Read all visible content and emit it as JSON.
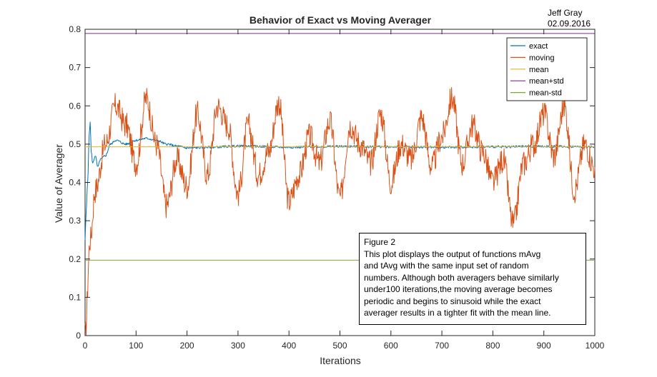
{
  "chart_data": {
    "type": "line",
    "title": "Behavior of Exact vs Moving Averager",
    "author": "Jeff Gray",
    "date": "02.09.2016",
    "xlabel": "Iterations",
    "ylabel": "Value of Averager",
    "xlim": [
      0,
      1000
    ],
    "ylim": [
      0,
      0.8
    ],
    "xticks": [
      "0",
      "100",
      "200",
      "300",
      "400",
      "500",
      "600",
      "700",
      "800",
      "900",
      "1000"
    ],
    "yticks": [
      "0",
      "0.1",
      "0.2",
      "0.3",
      "0.4",
      "0.5",
      "0.6",
      "0.7",
      "0.8"
    ],
    "grid": false,
    "legend_position": "top-right",
    "series": [
      {
        "name": "exact",
        "color": "#0072BD",
        "approx_shape": "starts near 0.25, rises quickly to ~0.56 near x=10, settles around 0.49-0.52 by x=100, then flat near 0.493",
        "x": [
          0,
          2,
          5,
          8,
          10,
          12,
          15,
          20,
          25,
          30,
          40,
          50,
          60,
          80,
          100,
          120,
          140,
          160,
          180,
          200,
          250,
          300,
          400,
          500,
          600,
          700,
          800,
          900,
          1000
        ],
        "y": [
          0.25,
          0.32,
          0.4,
          0.52,
          0.56,
          0.48,
          0.45,
          0.47,
          0.44,
          0.46,
          0.47,
          0.5,
          0.51,
          0.5,
          0.51,
          0.515,
          0.51,
          0.5,
          0.495,
          0.49,
          0.492,
          0.495,
          0.492,
          0.494,
          0.493,
          0.492,
          0.493,
          0.494,
          0.493
        ]
      },
      {
        "name": "moving",
        "color": "#D95319",
        "approx_shape": "starts at 0, rises to ~0.45 by x=30, then oscillates between ~0.29 and ~0.67 around 0.49",
        "x": [
          0,
          10,
          20,
          40,
          60,
          80,
          100,
          120,
          140,
          160,
          180,
          200,
          220,
          240,
          260,
          280,
          300,
          320,
          340,
          360,
          380,
          400,
          420,
          440,
          460,
          480,
          500,
          520,
          540,
          560,
          580,
          600,
          620,
          640,
          660,
          680,
          700,
          720,
          740,
          760,
          780,
          800,
          820,
          840,
          860,
          880,
          900,
          920,
          940,
          960,
          980,
          1000
        ],
        "y": [
          0.0,
          0.25,
          0.38,
          0.5,
          0.6,
          0.55,
          0.45,
          0.62,
          0.5,
          0.34,
          0.46,
          0.39,
          0.58,
          0.42,
          0.6,
          0.55,
          0.37,
          0.55,
          0.42,
          0.48,
          0.61,
          0.35,
          0.42,
          0.52,
          0.45,
          0.56,
          0.36,
          0.55,
          0.5,
          0.45,
          0.58,
          0.4,
          0.5,
          0.46,
          0.57,
          0.44,
          0.52,
          0.62,
          0.45,
          0.55,
          0.48,
          0.4,
          0.46,
          0.29,
          0.45,
          0.5,
          0.58,
          0.47,
          0.6,
          0.38,
          0.5,
          0.44
        ]
      },
      {
        "name": "mean",
        "color": "#EDB120",
        "x": [
          0,
          1000
        ],
        "y": [
          0.493,
          0.493
        ]
      },
      {
        "name": "mean+std",
        "color": "#7E2F8E",
        "x": [
          0,
          1000
        ],
        "y": [
          0.789,
          0.789
        ]
      },
      {
        "name": "mean-std",
        "color": "#77AC30",
        "x": [
          0,
          1000
        ],
        "y": [
          0.197,
          0.197
        ]
      }
    ]
  },
  "annotation": {
    "lines": [
      "Figure 2",
      "This plot displays the output of functions mAvg",
      "and tAvg with the same input set of random",
      "numbers. Although both averagers behave similarly",
      "under100 iterations,the moving average becomes",
      "periodic and begins to sinusoid while the exact",
      "averager results in a tighter fit with the mean line."
    ]
  }
}
